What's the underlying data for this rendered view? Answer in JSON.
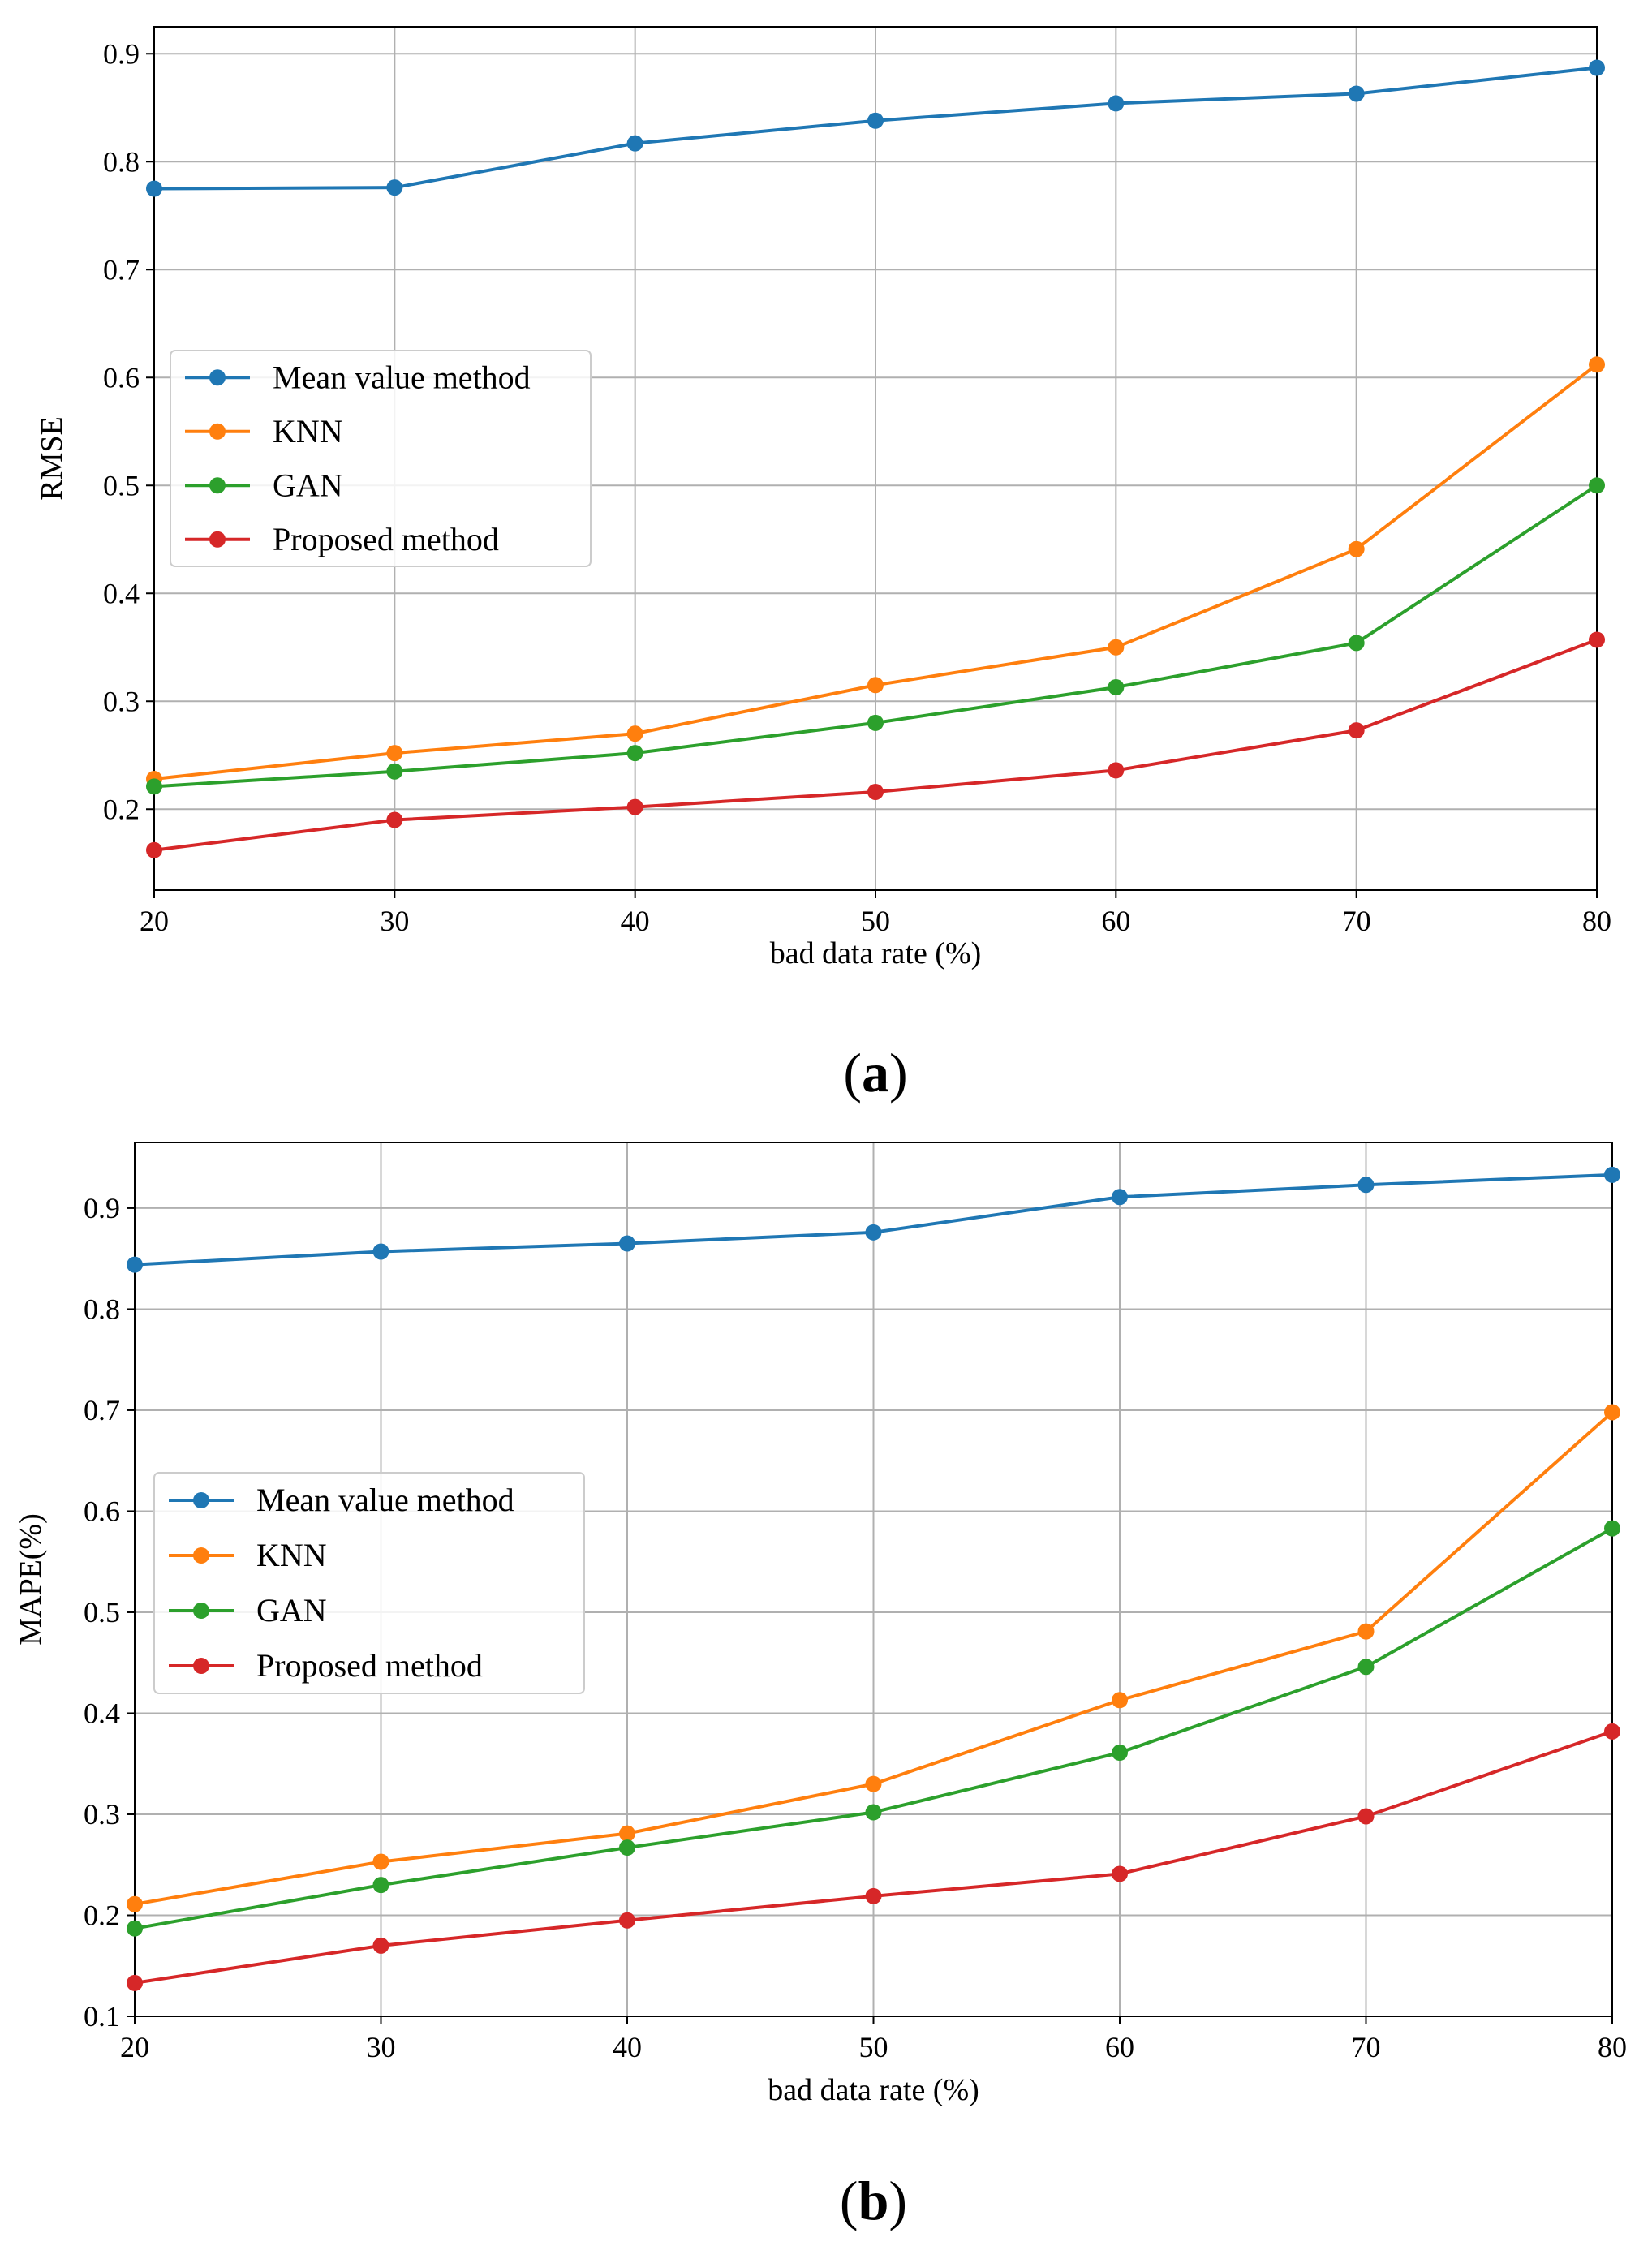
{
  "chart_data": [
    {
      "type": "line",
      "caption": {
        "open": "(",
        "letter": "a",
        "close": ")"
      },
      "title": "",
      "xlabel": "bad data rate (%)",
      "ylabel": "RMSE",
      "x": [
        20,
        30,
        40,
        50,
        60,
        70,
        80
      ],
      "xlim": [
        20,
        80
      ],
      "ylim": [
        0.125,
        0.925
      ],
      "xticks": [
        20,
        30,
        40,
        50,
        60,
        70,
        80
      ],
      "yticks": [
        0.2,
        0.3,
        0.4,
        0.5,
        0.6,
        0.7,
        0.8,
        0.9
      ],
      "grid": true,
      "legend_position": "center-left",
      "series": [
        {
          "name": "Mean value method",
          "color": "#1f77b4",
          "values": [
            0.775,
            0.776,
            0.817,
            0.838,
            0.854,
            0.863,
            0.887
          ]
        },
        {
          "name": "KNN",
          "color": "#ff7f0e",
          "values": [
            0.228,
            0.252,
            0.27,
            0.315,
            0.35,
            0.441,
            0.612
          ]
        },
        {
          "name": "GAN",
          "color": "#2ca02c",
          "values": [
            0.221,
            0.235,
            0.252,
            0.28,
            0.313,
            0.354,
            0.5
          ]
        },
        {
          "name": "Proposed method",
          "color": "#d62728",
          "values": [
            0.162,
            0.19,
            0.202,
            0.216,
            0.236,
            0.273,
            0.357
          ]
        }
      ]
    },
    {
      "type": "line",
      "caption": {
        "open": "(",
        "letter": "b",
        "close": ")"
      },
      "title": "",
      "xlabel": "bad data rate (%)",
      "ylabel": "MAPE(%)",
      "x": [
        20,
        30,
        40,
        50,
        60,
        70,
        80
      ],
      "xlim": [
        20,
        80
      ],
      "ylim": [
        0.1,
        0.965
      ],
      "xticks": [
        20,
        30,
        40,
        50,
        60,
        70,
        80
      ],
      "yticks": [
        0.1,
        0.2,
        0.3,
        0.4,
        0.5,
        0.6,
        0.7,
        0.8,
        0.9
      ],
      "grid": true,
      "legend_position": "center-left",
      "series": [
        {
          "name": "Mean value method",
          "color": "#1f77b4",
          "values": [
            0.844,
            0.857,
            0.865,
            0.876,
            0.911,
            0.923,
            0.933
          ]
        },
        {
          "name": "KNN",
          "color": "#ff7f0e",
          "values": [
            0.211,
            0.253,
            0.281,
            0.33,
            0.413,
            0.481,
            0.698
          ]
        },
        {
          "name": "GAN",
          "color": "#2ca02c",
          "values": [
            0.187,
            0.23,
            0.267,
            0.302,
            0.361,
            0.446,
            0.583
          ]
        },
        {
          "name": "Proposed method",
          "color": "#d62728",
          "values": [
            0.133,
            0.17,
            0.195,
            0.219,
            0.241,
            0.298,
            0.382
          ]
        }
      ]
    }
  ]
}
